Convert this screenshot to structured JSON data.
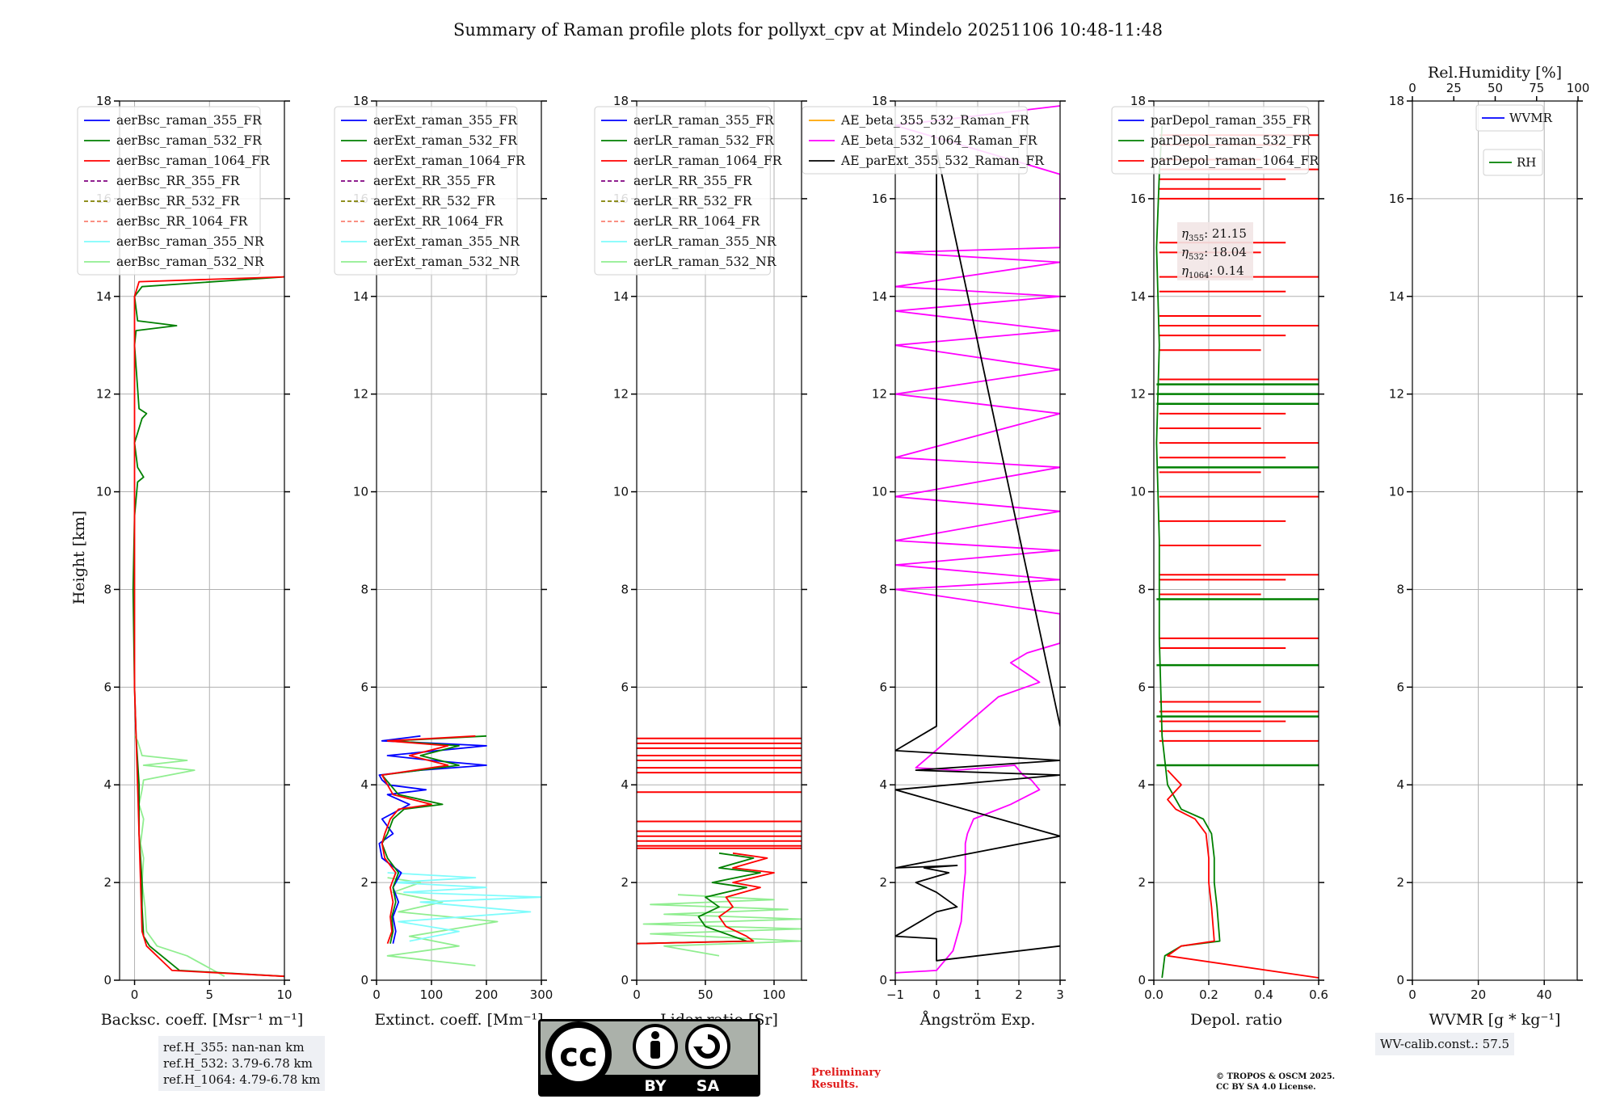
{
  "title": "Summary of Raman profile plots for pollyxt_cpv at Mindelo 20251106 10:48-11:48",
  "y_axis_label": "Height [km]",
  "height_ylim": [
    0,
    18
  ],
  "height_ticks": [
    "0",
    "2",
    "4",
    "6",
    "8",
    "10",
    "12",
    "14",
    "16",
    "18"
  ],
  "colors": {
    "blue": "#0000ff",
    "green": "#008000",
    "red": "#ff0000",
    "purple": "#800080",
    "olive": "#808000",
    "salmon": "#fa8072",
    "cyan": "#7ffcfc",
    "lightgreen": "#90ee90",
    "orange": "#ffa500",
    "magenta": "#ff00ff",
    "black": "#000000"
  },
  "chart_data": [
    {
      "id": "bsc",
      "type": "line",
      "xlabel": "Backsc. coeff. [Msr⁻¹ m⁻¹]",
      "xlim": [
        -1,
        10
      ],
      "ylim": [
        0,
        18
      ],
      "xticks": [
        "0",
        "5",
        "10"
      ],
      "xtick_values": [
        0,
        5,
        10
      ],
      "legend": [
        "aerBsc_raman_355_FR",
        "aerBsc_raman_532_FR",
        "aerBsc_raman_1064_FR",
        "aerBsc_RR_355_FR",
        "aerBsc_RR_532_FR",
        "aerBsc_RR_1064_FR",
        "aerBsc_raman_355_NR",
        "aerBsc_raman_532_NR"
      ],
      "legend_colors": [
        "blue",
        "green",
        "red",
        "purple",
        "olive",
        "salmon",
        "cyan",
        "lightgreen"
      ],
      "legend_dashed": [
        false,
        false,
        false,
        true,
        true,
        true,
        false,
        false
      ],
      "series": [
        {
          "name": "aerBsc_raman_532_NR",
          "color": "lightgreen",
          "x": [
            6.0,
            3.5,
            1.5,
            0.8,
            0.7,
            0.5,
            0.6,
            0.4,
            0.6,
            0.3,
            0.5,
            0.6,
            4.0,
            0.6,
            3.5,
            0.5,
            0.4,
            0.3,
            0.2,
            0.0
          ],
          "y": [
            0.08,
            0.5,
            0.7,
            1.0,
            1.5,
            2.0,
            2.5,
            2.8,
            3.3,
            3.6,
            3.9,
            4.1,
            4.3,
            4.4,
            4.5,
            4.6,
            4.7,
            4.8,
            4.9,
            5.0
          ]
        },
        {
          "name": "aerBsc_raman_532_FR",
          "color": "green",
          "x": [
            10.0,
            3.0,
            1.0,
            0.6,
            0.5,
            0.5,
            0.4,
            0.3,
            0.3,
            0.1,
            0.0,
            -0.1,
            0.0,
            0.2,
            0.6,
            0.2,
            0.0,
            0.5,
            0.8,
            0.3,
            0.0,
            0.1,
            2.8,
            0.2,
            0.0,
            0.5,
            10.0
          ],
          "y": [
            0.08,
            0.2,
            0.7,
            0.9,
            1.5,
            2.0,
            2.5,
            3.0,
            4.0,
            5.0,
            6.0,
            8.0,
            9.5,
            10.2,
            10.3,
            10.5,
            11.0,
            11.5,
            11.6,
            11.7,
            13.0,
            13.3,
            13.4,
            13.5,
            14.0,
            14.2,
            14.4
          ]
        },
        {
          "name": "aerBsc_raman_1064_FR",
          "color": "red",
          "x": [
            10.0,
            2.5,
            0.8,
            0.5,
            0.4,
            0.3,
            0.2,
            0.1,
            0.0,
            0.0,
            0.0,
            0.0,
            0.0,
            0.0,
            0.3,
            10.0
          ],
          "y": [
            0.08,
            0.2,
            0.7,
            1.0,
            2.0,
            3.0,
            4.0,
            5.0,
            6.0,
            8.0,
            10.0,
            12.0,
            13.0,
            14.0,
            14.3,
            14.4
          ]
        }
      ]
    },
    {
      "id": "ext",
      "type": "line",
      "xlabel": "Extinct. coeff. [Mm⁻¹]",
      "xlim": [
        0,
        300
      ],
      "ylim": [
        0,
        18
      ],
      "xticks": [
        "0",
        "100",
        "200",
        "300"
      ],
      "xtick_values": [
        0,
        100,
        200,
        300
      ],
      "legend": [
        "aerExt_raman_355_FR",
        "aerExt_raman_532_FR",
        "aerExt_raman_1064_FR",
        "aerExt_RR_355_FR",
        "aerExt_RR_532_FR",
        "aerExt_RR_1064_FR",
        "aerExt_raman_355_NR",
        "aerExt_raman_532_NR"
      ],
      "legend_colors": [
        "blue",
        "green",
        "red",
        "purple",
        "olive",
        "salmon",
        "cyan",
        "lightgreen"
      ],
      "legend_dashed": [
        false,
        false,
        false,
        true,
        true,
        true,
        false,
        false
      ],
      "series": [
        {
          "name": "aerExt_raman_532_NR",
          "color": "lightgreen",
          "x": [
            180,
            20,
            150,
            60,
            220,
            40,
            120,
            30,
            80,
            20
          ],
          "y": [
            0.3,
            0.5,
            0.7,
            0.9,
            1.2,
            1.4,
            1.6,
            1.8,
            2.0,
            2.1
          ]
        },
        {
          "name": "aerExt_raman_355_NR",
          "color": "cyan",
          "x": [
            60,
            150,
            40,
            280,
            80,
            300,
            50,
            200,
            30,
            180,
            20
          ],
          "y": [
            0.8,
            1.0,
            1.2,
            1.4,
            1.6,
            1.7,
            1.8,
            1.9,
            2.0,
            2.1,
            2.2
          ]
        },
        {
          "name": "aerExt_raman_355_FR",
          "color": "blue",
          "x": [
            30,
            35,
            30,
            40,
            30,
            45,
            10,
            5,
            30,
            10,
            60,
            20,
            90,
            20,
            10,
            5,
            80,
            200,
            100,
            20,
            200,
            10,
            80
          ],
          "y": [
            0.75,
            1.0,
            1.3,
            1.6,
            1.9,
            2.2,
            2.5,
            2.8,
            3.0,
            3.3,
            3.6,
            3.8,
            3.9,
            4.0,
            4.1,
            4.2,
            4.3,
            4.4,
            4.5,
            4.6,
            4.8,
            4.9,
            5.0
          ]
        },
        {
          "name": "aerExt_raman_532_FR",
          "color": "green",
          "x": [
            25,
            30,
            28,
            35,
            30,
            40,
            20,
            10,
            20,
            30,
            50,
            120,
            40,
            10,
            150,
            80,
            150,
            30,
            200
          ],
          "y": [
            0.75,
            1.0,
            1.3,
            1.6,
            1.9,
            2.2,
            2.5,
            2.8,
            3.0,
            3.3,
            3.5,
            3.6,
            3.8,
            4.2,
            4.4,
            4.6,
            4.8,
            4.9,
            5.0
          ]
        },
        {
          "name": "aerExt_raman_1064_FR",
          "color": "red",
          "x": [
            20,
            28,
            25,
            30,
            25,
            35,
            15,
            10,
            15,
            25,
            40,
            100,
            30,
            10,
            130,
            60,
            130,
            20,
            180
          ],
          "y": [
            0.75,
            1.0,
            1.3,
            1.6,
            1.9,
            2.2,
            2.5,
            2.8,
            3.0,
            3.3,
            3.5,
            3.6,
            3.8,
            4.2,
            4.4,
            4.6,
            4.8,
            4.9,
            5.0
          ]
        }
      ]
    },
    {
      "id": "lr",
      "type": "line",
      "xlabel": "Lidar ratio [Sr]",
      "xlim": [
        0,
        120
      ],
      "ylim": [
        0,
        18
      ],
      "xticks": [
        "0",
        "50",
        "100"
      ],
      "xtick_values": [
        0,
        50,
        100
      ],
      "legend": [
        "aerLR_raman_355_FR",
        "aerLR_raman_532_FR",
        "aerLR_raman_1064_FR",
        "aerLR_RR_355_FR",
        "aerLR_RR_532_FR",
        "aerLR_RR_1064_FR",
        "aerLR_raman_355_NR",
        "aerLR_raman_532_NR"
      ],
      "legend_colors": [
        "blue",
        "green",
        "red",
        "purple",
        "olive",
        "salmon",
        "cyan",
        "lightgreen"
      ],
      "legend_dashed": [
        false,
        false,
        false,
        true,
        true,
        true,
        false,
        false
      ],
      "series": [
        {
          "name": "aerLR_raman_532_NR",
          "color": "lightgreen",
          "x": [
            60,
            20,
            120,
            10,
            120,
            5,
            120,
            20,
            110,
            10,
            100,
            30
          ],
          "y": [
            0.5,
            0.7,
            0.8,
            0.95,
            1.05,
            1.15,
            1.25,
            1.35,
            1.45,
            1.55,
            1.65,
            1.75
          ]
        },
        {
          "name": "aerLR_raman_532_FR",
          "color": "green",
          "x": [
            0,
            80,
            70,
            50,
            45,
            60,
            50,
            80,
            55,
            90,
            60,
            85,
            60
          ],
          "y": [
            0.75,
            0.8,
            0.9,
            1.1,
            1.3,
            1.5,
            1.7,
            1.9,
            2.0,
            2.2,
            2.3,
            2.5,
            2.6
          ]
        },
        {
          "name": "aerLR_raman_1064_FR",
          "color": "red",
          "x": [
            0,
            85,
            80,
            65,
            60,
            70,
            65,
            90,
            70,
            100,
            70,
            95,
            70
          ],
          "y": [
            0.75,
            0.8,
            0.9,
            1.1,
            1.3,
            1.5,
            1.7,
            1.9,
            2.0,
            2.2,
            2.3,
            2.5,
            2.6
          ]
        }
      ],
      "red_steps": [
        2.7,
        2.75,
        2.85,
        2.95,
        3.05,
        3.25,
        3.85,
        4.25,
        4.35,
        4.5,
        4.6,
        4.75,
        4.85,
        4.95
      ]
    },
    {
      "id": "ae",
      "type": "line",
      "xlabel": "Ångström Exp.",
      "xlim": [
        -1,
        3
      ],
      "ylim": [
        0,
        18
      ],
      "xticks": [
        "−1",
        "0",
        "1",
        "2",
        "3"
      ],
      "xtick_values": [
        -1,
        0,
        1,
        2,
        3
      ],
      "legend": [
        "AE_beta_355_532_Raman_FR",
        "AE_beta_532_1064_Raman_FR",
        "AE_parExt_355_532_Raman_FR"
      ],
      "legend_colors": [
        "orange",
        "magenta",
        "black"
      ],
      "legend_dashed": [
        false,
        false,
        false
      ],
      "series": [
        {
          "name": "AE_beta_532_1064_Raman_FR",
          "color": "magenta",
          "x": [
            -1.0,
            0.0,
            0.4,
            0.6,
            0.65,
            0.7,
            0.7,
            0.75,
            0.9,
            1.8,
            2.5,
            2.3,
            2.1,
            1.9,
            0.5,
            -0.5,
            1.5,
            2.5,
            1.8,
            2.2,
            3.0,
            3.0,
            -1.0,
            3.0,
            -1.0,
            3.0,
            -1.0,
            3.0,
            -1.0,
            3.0,
            -1.0,
            3.0,
            -1.0,
            3.0,
            -1.0,
            3.0,
            -1.0,
            3.0,
            -1.0,
            3.0,
            -1.0,
            3.0,
            3.0,
            -1.0,
            3.0
          ],
          "y": [
            0.15,
            0.2,
            0.6,
            1.2,
            1.8,
            2.2,
            2.8,
            3.0,
            3.3,
            3.6,
            3.9,
            4.1,
            4.2,
            4.4,
            4.3,
            4.35,
            5.8,
            6.1,
            6.5,
            6.7,
            6.9,
            7.5,
            8.0,
            8.2,
            8.5,
            8.8,
            9.0,
            9.6,
            9.9,
            10.5,
            10.7,
            11.6,
            12.0,
            12.5,
            13.0,
            13.3,
            13.7,
            14.0,
            14.2,
            14.7,
            14.9,
            15.0,
            16.5,
            17.5,
            17.9
          ]
        },
        {
          "name": "AE_parExt_355_532_Raman_FR",
          "color": "black",
          "x": [
            3.0,
            0.0,
            0.0,
            -1.0,
            0.0,
            0.5,
            0.0,
            -0.5,
            0.3,
            -0.3,
            0.5,
            -1.0,
            3.0,
            -1.0,
            3.0,
            -0.5,
            3.0,
            -1.0,
            0.0,
            0.0,
            3.0
          ],
          "y": [
            0.7,
            0.4,
            0.85,
            0.9,
            1.4,
            1.5,
            1.8,
            2.0,
            2.2,
            2.3,
            2.35,
            2.3,
            2.95,
            3.9,
            4.2,
            4.3,
            4.5,
            4.7,
            5.2,
            17.0,
            5.2
          ]
        }
      ]
    },
    {
      "id": "depol",
      "type": "line",
      "xlabel": "Depol. ratio",
      "xlim": [
        0.0,
        0.6
      ],
      "ylim": [
        0,
        18
      ],
      "xticks": [
        "0.0",
        "0.2",
        "0.4",
        "0.6"
      ],
      "xtick_values": [
        0.0,
        0.2,
        0.4,
        0.6
      ],
      "legend": [
        "parDepol_raman_355_FR",
        "parDepol_raman_532_FR",
        "parDepol_raman_1064_FR"
      ],
      "legend_colors": [
        "blue",
        "green",
        "red"
      ],
      "legend_dashed": [
        false,
        false,
        false
      ],
      "eta": [
        {
          "label": "η",
          "sub": "355",
          "value": ": 21.15"
        },
        {
          "label": "η",
          "sub": "532",
          "value": ": 18.04"
        },
        {
          "label": "η",
          "sub": "1064",
          "value": ": 0.14"
        }
      ],
      "series": [
        {
          "name": "parDepol_raman_532_FR",
          "color": "green",
          "x": [
            0.03,
            0.04,
            0.1,
            0.24,
            0.23,
            0.22,
            0.22,
            0.21,
            0.18,
            0.1,
            0.05,
            0.03,
            0.02,
            0.02,
            0.01,
            0.02,
            0.01,
            0.02,
            0.03
          ],
          "y": [
            0.05,
            0.5,
            0.7,
            0.8,
            1.5,
            2.0,
            2.5,
            3.0,
            3.3,
            3.5,
            4.0,
            5.0,
            7.0,
            9.0,
            11.0,
            13.0,
            15.0,
            16.5,
            17.5
          ]
        },
        {
          "name": "parDepol_raman_1064_FR",
          "color": "red",
          "x": [
            0.6,
            0.05,
            0.1,
            0.22,
            0.21,
            0.2,
            0.2,
            0.19,
            0.15,
            0.08,
            0.05,
            0.1,
            0.05
          ],
          "y": [
            0.05,
            0.5,
            0.7,
            0.8,
            1.5,
            2.0,
            2.5,
            3.0,
            3.3,
            3.5,
            3.7,
            4.0,
            4.3
          ]
        }
      ],
      "red_spikes": [
        4.9,
        5.1,
        5.3,
        5.5,
        5.7,
        6.8,
        7.0,
        7.9,
        8.2,
        8.3,
        8.9,
        9.4,
        9.9,
        10.4,
        10.7,
        11.0,
        11.3,
        11.6,
        12.3,
        12.9,
        13.2,
        13.4,
        13.6,
        14.1,
        14.4,
        14.9,
        15.1,
        16.0,
        16.2,
        16.4,
        16.6,
        16.8,
        17.1,
        17.3
      ],
      "green_spikes": [
        4.4,
        5.4,
        6.45,
        7.8,
        10.5,
        11.8,
        12.0,
        12.2
      ]
    },
    {
      "id": "wv",
      "type": "line",
      "xlabel": "WVMR [g * kg⁻¹]",
      "xlim": [
        0,
        50
      ],
      "ylim": [
        0,
        18
      ],
      "xticks": [
        "0",
        "20",
        "40"
      ],
      "xtick_values": [
        0,
        20,
        40
      ],
      "top_xlabel": "Rel.Humidity [%]",
      "top_xticks": [
        "0",
        "25",
        "50",
        "75",
        "100"
      ],
      "top_xtick_values": [
        0,
        25,
        50,
        75,
        100
      ],
      "legend": [
        "WVMR",
        "RH"
      ],
      "legend_colors": [
        "blue",
        "green"
      ],
      "legend_dashed": [
        false,
        false
      ],
      "series": []
    }
  ],
  "ref_heights": [
    "ref.H_355: nan-nan km",
    "ref.H_532: 3.79-6.78 km",
    "ref.H_1064: 4.79-6.78 km"
  ],
  "wv_calib": "WV-calib.const.: 57.5",
  "preliminary": [
    "Preliminary",
    "Results."
  ],
  "copyright": [
    "© TROPOS & OSCM 2025.",
    "CC BY SA 4.0 License."
  ],
  "license_logo_text": {
    "main": "cc",
    "by": "BY",
    "sa": "SA"
  }
}
